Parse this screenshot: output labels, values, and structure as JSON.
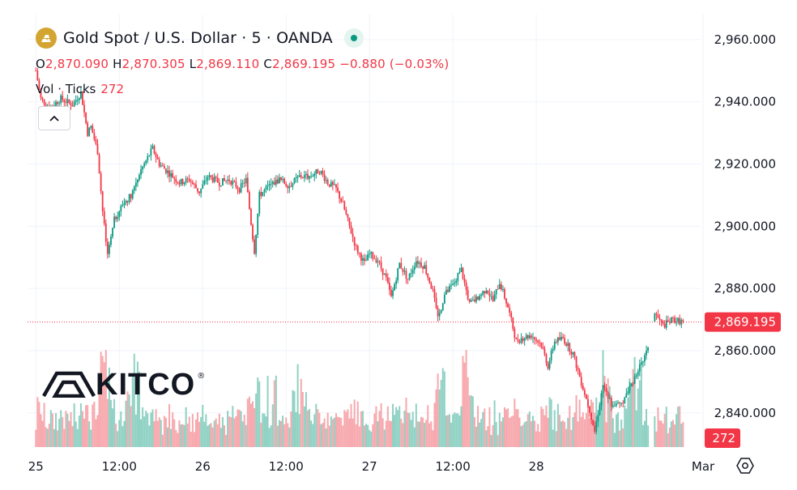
{
  "header": {
    "symbol_title": "Gold Spot / U.S. Dollar · 5 · OANDA",
    "symbol_icon": "gold-bars-icon",
    "status_icon": "market-open-dot-icon",
    "ohlc": {
      "open_key": "O",
      "open": "2,870.090",
      "high_key": "H",
      "high": "2,870.305",
      "low_key": "L",
      "low": "2,869.110",
      "close_key": "C",
      "close": "2,869.195",
      "change": "−0.880 (−0.03%)"
    },
    "volume_label": "Vol · Ticks",
    "volume_value": "272",
    "collapse_icon": "chevron-up-icon"
  },
  "logo": {
    "text": "KITCO",
    "mark": "®"
  },
  "settings_icon": "settings-gear-icon",
  "colors": {
    "up": "#089981",
    "down": "#f23645",
    "text": "#131722",
    "grid": "#f0f3fa"
  },
  "chart_data": {
    "type": "candlestick",
    "y_ticks": [
      "2,960.000",
      "2,940.000",
      "2,920.000",
      "2,900.000",
      "2,880.000",
      "2,860.000",
      "2,840.000"
    ],
    "y_tick_values": [
      2960,
      2940,
      2920,
      2900,
      2880,
      2860,
      2840
    ],
    "ylim": [
      2829,
      2967
    ],
    "x_ticks": [
      "25",
      "12:00",
      "26",
      "12:00",
      "27",
      "12:00",
      "28",
      "Mar"
    ],
    "x_tick_positions": [
      0,
      0.5,
      1,
      1.5,
      2,
      2.5,
      3,
      4
    ],
    "xlim": [
      -0.05,
      3.99
    ],
    "last_price_label": "2,869.195",
    "last_price": 2869.195,
    "last_volume_label": "272",
    "last_volume": 272,
    "volume_max": 1100,
    "price_path": [
      [
        0.0,
        2950
      ],
      [
        0.03,
        2941
      ],
      [
        0.08,
        2938
      ],
      [
        0.15,
        2941
      ],
      [
        0.22,
        2939
      ],
      [
        0.27,
        2943
      ],
      [
        0.31,
        2930
      ],
      [
        0.33,
        2932
      ],
      [
        0.37,
        2924
      ],
      [
        0.4,
        2905
      ],
      [
        0.43,
        2890
      ],
      [
        0.47,
        2902
      ],
      [
        0.52,
        2907
      ],
      [
        0.57,
        2910
      ],
      [
        0.62,
        2917
      ],
      [
        0.66,
        2921
      ],
      [
        0.7,
        2925
      ],
      [
        0.74,
        2920
      ],
      [
        0.8,
        2917
      ],
      [
        0.86,
        2914
      ],
      [
        0.92,
        2915
      ],
      [
        0.98,
        2911
      ],
      [
        1.03,
        2916
      ],
      [
        1.1,
        2914
      ],
      [
        1.16,
        2915
      ],
      [
        1.22,
        2912
      ],
      [
        1.26,
        2915
      ],
      [
        1.29,
        2901
      ],
      [
        1.31,
        2892
      ],
      [
        1.34,
        2910
      ],
      [
        1.4,
        2913
      ],
      [
        1.46,
        2915
      ],
      [
        1.52,
        2913
      ],
      [
        1.58,
        2916
      ],
      [
        1.64,
        2916
      ],
      [
        1.7,
        2918
      ],
      [
        1.75,
        2914
      ],
      [
        1.8,
        2912
      ],
      [
        1.84,
        2907
      ],
      [
        1.88,
        2900
      ],
      [
        1.92,
        2893
      ],
      [
        1.97,
        2888
      ],
      [
        2.0,
        2891
      ],
      [
        2.05,
        2889
      ],
      [
        2.1,
        2883
      ],
      [
        2.13,
        2877
      ],
      [
        2.18,
        2888
      ],
      [
        2.23,
        2883
      ],
      [
        2.28,
        2889
      ],
      [
        2.33,
        2887
      ],
      [
        2.38,
        2879
      ],
      [
        2.41,
        2870
      ],
      [
        2.45,
        2878
      ],
      [
        2.5,
        2881
      ],
      [
        2.55,
        2886
      ],
      [
        2.6,
        2875
      ],
      [
        2.65,
        2877
      ],
      [
        2.7,
        2880
      ],
      [
        2.74,
        2876
      ],
      [
        2.78,
        2882
      ],
      [
        2.83,
        2874
      ],
      [
        2.88,
        2863
      ],
      [
        2.91,
        2864
      ],
      [
        2.97,
        2865
      ],
      [
        3.03,
        2862
      ],
      [
        3.07,
        2855
      ],
      [
        3.11,
        2863
      ],
      [
        3.16,
        2864
      ],
      [
        3.22,
        2859
      ],
      [
        3.28,
        2848
      ],
      [
        3.32,
        2841
      ],
      [
        3.35,
        2834
      ],
      [
        3.4,
        2849
      ],
      [
        3.45,
        2843
      ],
      [
        3.5,
        2842
      ],
      [
        3.56,
        2848
      ],
      [
        3.62,
        2855
      ],
      [
        3.66,
        2859
      ],
      [
        3.71,
        2872
      ],
      [
        3.76,
        2868
      ],
      [
        3.82,
        2870
      ],
      [
        3.88,
        2869.195
      ]
    ],
    "gap": [
      3.67,
      3.7
    ]
  }
}
